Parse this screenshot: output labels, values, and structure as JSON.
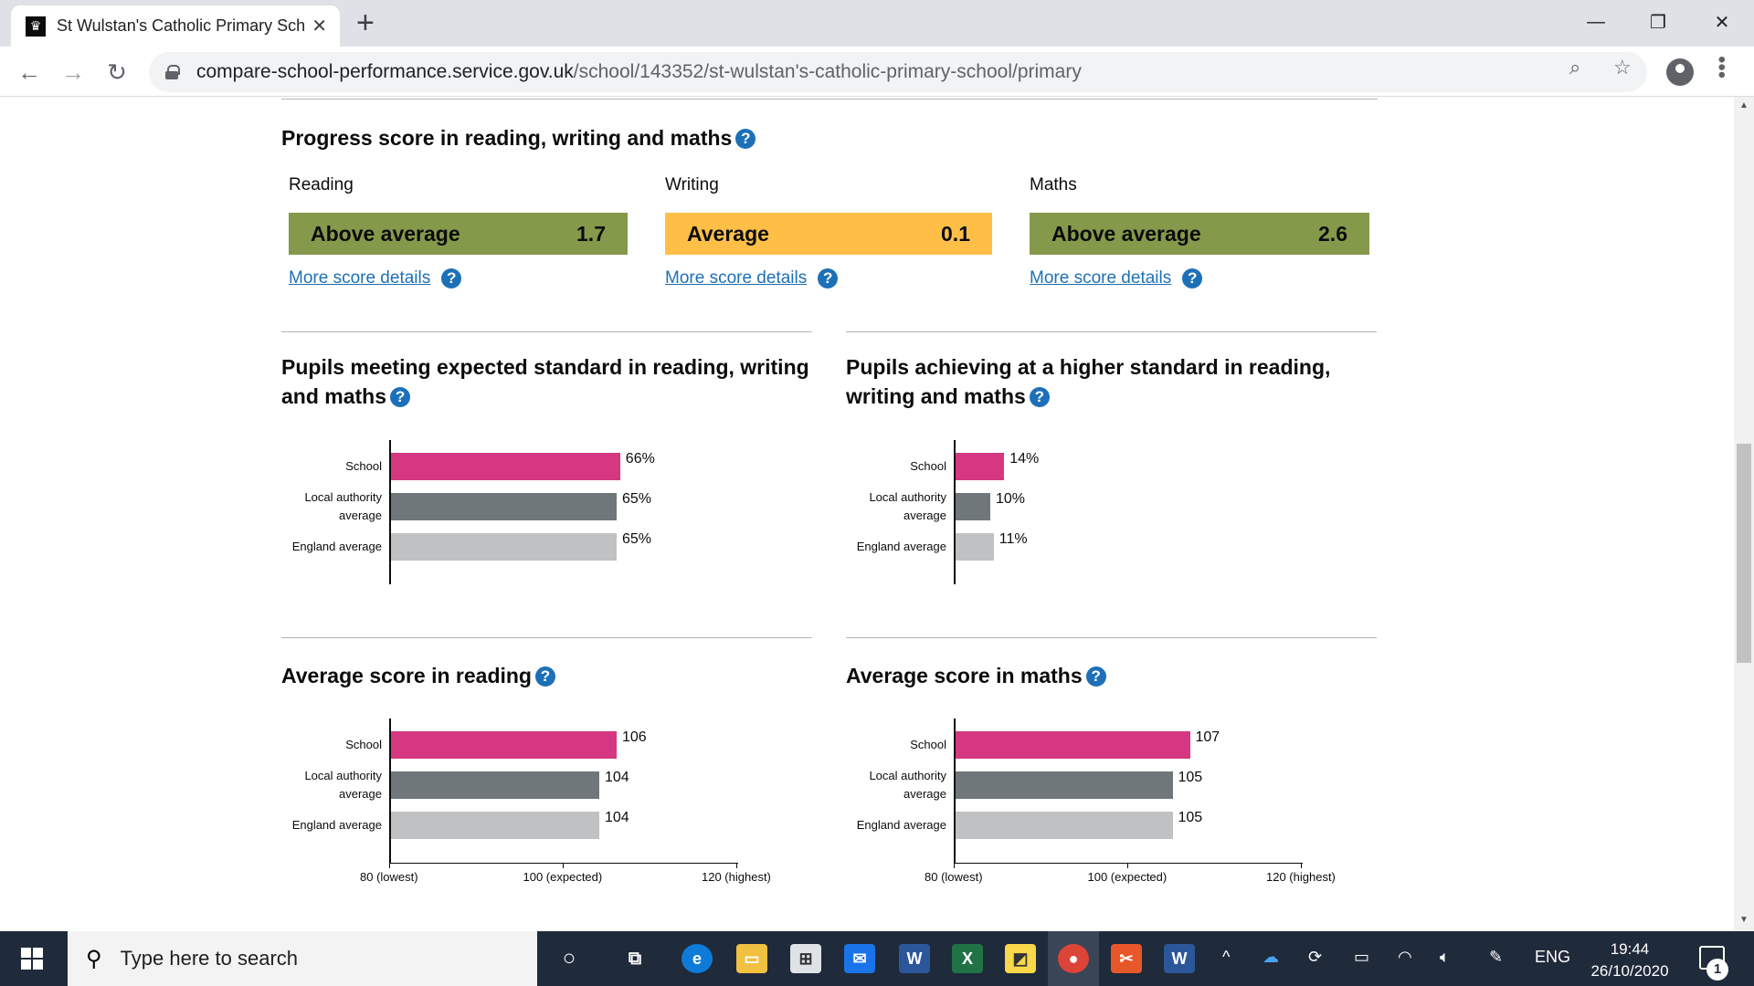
{
  "browser": {
    "tab_title": "St Wulstan's Catholic Primary Sch",
    "tab_close": "✕",
    "new_tab": "+",
    "url_host": "compare-school-performance.service.gov.uk",
    "url_path": "/school/143352/st-wulstan's-catholic-primary-school/primary"
  },
  "progress": {
    "heading": "Progress score in reading, writing and maths",
    "more_label": "More score details",
    "subjects": [
      {
        "label": "Reading",
        "band": "Above average",
        "score": "1.7",
        "color": "#85994b"
      },
      {
        "label": "Writing",
        "band": "Average",
        "score": "0.1",
        "color": "#ffbf47"
      },
      {
        "label": "Maths",
        "band": "Above average",
        "score": "2.6",
        "color": "#85994b"
      }
    ]
  },
  "colors": {
    "school": "#d53880",
    "local_authority": "#6f777b",
    "england": "#bfc1c3",
    "help_icon": "#1d70b8"
  },
  "chart_data": [
    {
      "type": "bar",
      "title": "Pupils meeting expected standard in reading, writing and maths",
      "categories": [
        "School",
        "Local authority average",
        "England average"
      ],
      "values": [
        66,
        65,
        65
      ],
      "labels": [
        "66%",
        "65%",
        "65%"
      ],
      "xlim": [
        0,
        100
      ],
      "ticks": []
    },
    {
      "type": "bar",
      "title": "Pupils achieving at a higher standard in reading, writing and maths",
      "categories": [
        "School",
        "Local authority average",
        "England average"
      ],
      "values": [
        14,
        10,
        11
      ],
      "labels": [
        "14%",
        "10%",
        "11%"
      ],
      "xlim": [
        0,
        100
      ],
      "ticks": []
    },
    {
      "type": "bar",
      "title": "Average score in reading",
      "categories": [
        "School",
        "Local authority average",
        "England average"
      ],
      "values": [
        106,
        104,
        104
      ],
      "labels": [
        "106",
        "104",
        "104"
      ],
      "xlim": [
        80,
        120
      ],
      "ticks": [
        {
          "value": 80,
          "label": "80 (lowest)"
        },
        {
          "value": 100,
          "label": "100 (expected)"
        },
        {
          "value": 120,
          "label": "120 (highest)"
        }
      ]
    },
    {
      "type": "bar",
      "title": "Average score in maths",
      "categories": [
        "School",
        "Local authority average",
        "England average"
      ],
      "values": [
        107,
        105,
        105
      ],
      "labels": [
        "107",
        "105",
        "105"
      ],
      "xlim": [
        80,
        120
      ],
      "ticks": [
        {
          "value": 80,
          "label": "80 (lowest)"
        },
        {
          "value": 100,
          "label": "100 (expected)"
        },
        {
          "value": 120,
          "label": "120 (highest)"
        }
      ]
    }
  ],
  "taskbar": {
    "search_placeholder": "Type here to search",
    "language": "ENG",
    "time": "19:44",
    "date": "26/10/2020",
    "notification_count": "1"
  }
}
